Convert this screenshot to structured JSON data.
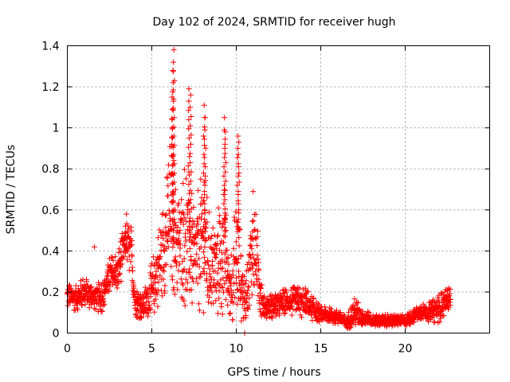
{
  "chart_data": {
    "type": "scatter",
    "title": "Day 102 of 2024, SRMTID for receiver hugh",
    "xlabel": "GPS time / hours",
    "ylabel": "SRMTID / TECUs",
    "xlim": [
      0,
      25
    ],
    "ylim": [
      0,
      1.4
    ],
    "xticks": [
      0,
      5,
      10,
      15,
      20
    ],
    "xtick_labels": [
      "0",
      "5",
      "10",
      "15",
      "20"
    ],
    "yticks": [
      0,
      0.2,
      0.4,
      0.6,
      0.8,
      1,
      1.2,
      1.4
    ],
    "ytick_labels": [
      "0",
      "0.2",
      "0.4",
      "0.6",
      "0.8",
      "1",
      "1.2",
      "1.4"
    ],
    "grid": true,
    "marker": "+",
    "series": [
      {
        "name": "SRMTID",
        "color": "#ff0000",
        "envelope": {
          "x": [
            0,
            0.5,
            1,
            1.5,
            2,
            2.5,
            3,
            3.3,
            3.5,
            3.8,
            4,
            4.5,
            5,
            5.5,
            5.8,
            6,
            6.2,
            6.4,
            6.6,
            7,
            7.2,
            7.5,
            8,
            8.2,
            8.5,
            9,
            9.3,
            9.6,
            10,
            10.2,
            10.5,
            11,
            11.3,
            11.6,
            12,
            13,
            14,
            15,
            16,
            16.5,
            17,
            18,
            19,
            20,
            21,
            21.5,
            22,
            22.7
          ],
          "base": [
            0.18,
            0.17,
            0.2,
            0.18,
            0.17,
            0.28,
            0.3,
            0.4,
            0.45,
            0.38,
            0.15,
            0.13,
            0.2,
            0.35,
            0.45,
            0.55,
            0.6,
            0.45,
            0.42,
            0.5,
            0.45,
            0.35,
            0.45,
            0.42,
            0.3,
            0.35,
            0.4,
            0.22,
            0.35,
            0.3,
            0.15,
            0.45,
            0.3,
            0.12,
            0.13,
            0.15,
            0.15,
            0.09,
            0.08,
            0.05,
            0.1,
            0.06,
            0.06,
            0.06,
            0.11,
            0.1,
            0.12,
            0.18
          ],
          "spread": [
            0.07,
            0.06,
            0.08,
            0.06,
            0.08,
            0.09,
            0.1,
            0.12,
            0.1,
            0.14,
            0.07,
            0.07,
            0.15,
            0.2,
            0.25,
            0.35,
            0.4,
            0.28,
            0.25,
            0.38,
            0.35,
            0.25,
            0.35,
            0.33,
            0.2,
            0.3,
            0.32,
            0.14,
            0.32,
            0.25,
            0.1,
            0.25,
            0.18,
            0.06,
            0.06,
            0.07,
            0.08,
            0.04,
            0.04,
            0.03,
            0.07,
            0.03,
            0.03,
            0.03,
            0.04,
            0.05,
            0.07,
            0.05
          ]
        },
        "spikes": [
          {
            "x": 6.3,
            "y": 1.38
          },
          {
            "x": 6.25,
            "y": 1.28
          },
          {
            "x": 6.2,
            "y": 1.15
          },
          {
            "x": 7.2,
            "y": 1.19
          },
          {
            "x": 7.3,
            "y": 1.16
          },
          {
            "x": 8.1,
            "y": 1.11
          },
          {
            "x": 8.15,
            "y": 1.05
          },
          {
            "x": 9.3,
            "y": 1.05
          },
          {
            "x": 9.35,
            "y": 0.98
          },
          {
            "x": 10.1,
            "y": 0.96
          },
          {
            "x": 10.15,
            "y": 0.93
          },
          {
            "x": 11.0,
            "y": 0.69
          },
          {
            "x": 10.5,
            "y": 0.0
          },
          {
            "x": 1.6,
            "y": 0.42
          },
          {
            "x": 3.5,
            "y": 0.58
          }
        ]
      }
    ]
  }
}
